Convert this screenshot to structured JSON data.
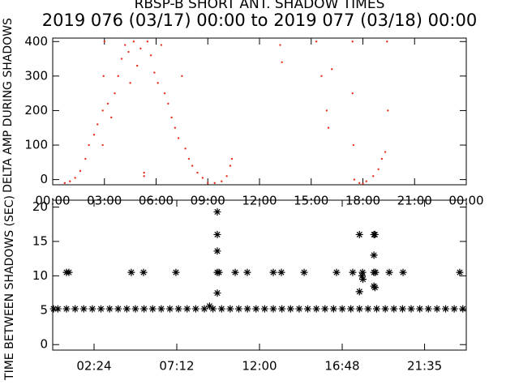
{
  "chart_data": [
    {
      "type": "scatter",
      "title": "RBSP-B SHORT ANT. SHADOW TIMES",
      "subtitle": "2019 076 (03/17) 00:00 to 2019 077 (03/18) 00:00",
      "ylabel": "DELTA AMP DURING SHADOWS",
      "xlim": [
        0,
        24
      ],
      "ylim": [
        -15,
        410
      ],
      "xticks": [
        {
          "value": 0,
          "label": "00:00"
        },
        {
          "value": 3,
          "label": "03:00"
        },
        {
          "value": 6,
          "label": "06:00"
        },
        {
          "value": 9,
          "label": "09:00"
        },
        {
          "value": 12,
          "label": "12:00"
        },
        {
          "value": 15,
          "label": "15:00"
        },
        {
          "value": 18,
          "label": "18:00"
        },
        {
          "value": 21,
          "label": "21:00"
        },
        {
          "value": 24,
          "label": "00:00"
        }
      ],
      "yticks": [
        0,
        100,
        200,
        300,
        400
      ],
      "marker": "dot",
      "series": [
        {
          "color": "#e8301c",
          "x": [
            0.7,
            1.0,
            1.3,
            1.6,
            1.9,
            2.1,
            2.4,
            2.6,
            2.9,
            2.95,
            3.0,
            2.9,
            3.2,
            3.4,
            3.6,
            3.8,
            4.0,
            4.2,
            4.4,
            4.5,
            4.7,
            4.9,
            5.1,
            5.3,
            5.3,
            5.5,
            5.7,
            5.9,
            6.1,
            6.3,
            6.5,
            6.7,
            6.9,
            7.1,
            7.3,
            7.5,
            7.7,
            7.9,
            8.1,
            8.4,
            8.7,
            9.0,
            9.4,
            9.8,
            10.1,
            10.3,
            10.4,
            13.2,
            13.3,
            15.3,
            15.6,
            15.9,
            16.0,
            16.2,
            17.4,
            17.4,
            17.45,
            17.5,
            17.8,
            18.0,
            18.2,
            18.6,
            18.9,
            19.1,
            19.3,
            19.4,
            19.45
          ],
          "values": [
            -10,
            -5,
            5,
            25,
            60,
            100,
            130,
            160,
            200,
            300,
            400,
            100,
            220,
            180,
            250,
            300,
            350,
            390,
            370,
            280,
            400,
            330,
            380,
            10,
            20,
            400,
            360,
            310,
            280,
            390,
            250,
            220,
            180,
            150,
            120,
            300,
            90,
            60,
            40,
            20,
            5,
            -10,
            -10,
            -5,
            10,
            40,
            60,
            390,
            340,
            400,
            300,
            200,
            150,
            320,
            400,
            250,
            100,
            0,
            -10,
            -12,
            -5,
            10,
            30,
            60,
            80,
            400,
            200
          ]
        }
      ]
    },
    {
      "type": "scatter",
      "ylabel": "TIME BETWEEN SHADOWS (SEC)",
      "xlim": [
        0,
        24
      ],
      "ylim": [
        -0.8,
        21
      ],
      "xticks": [
        {
          "value": 2.4,
          "label": "02:24"
        },
        {
          "value": 7.2,
          "label": "07:12"
        },
        {
          "value": 12,
          "label": "12:00"
        },
        {
          "value": 16.8,
          "label": "16:48"
        },
        {
          "value": 21.58,
          "label": "21:35"
        }
      ],
      "yticks": [
        0,
        5,
        10,
        15,
        20
      ],
      "marker": "star",
      "series": [
        {
          "color": "#000000",
          "x": [
            0.3,
            0.8,
            1.3,
            1.8,
            2.3,
            2.8,
            3.3,
            3.8,
            4.3,
            4.8,
            5.3,
            5.8,
            6.3,
            6.8,
            7.3,
            7.8,
            8.3,
            8.8,
            9.3,
            9.8,
            10.3,
            10.8,
            11.3,
            11.8,
            12.3,
            12.8,
            13.3,
            13.8,
            14.3,
            14.8,
            15.3,
            15.8,
            16.3,
            16.8,
            17.3,
            17.8,
            18.3,
            18.8,
            19.3,
            19.8,
            20.3,
            20.8,
            21.3,
            21.8,
            22.3,
            22.8,
            23.3,
            23.8,
            0.05,
            0.8,
            0.94,
            4.56,
            5.27,
            7.15,
            9.55,
            9.65,
            10.59,
            11.29,
            12.8,
            13.27,
            14.59,
            16.47,
            17.41,
            17.98,
            18.64,
            18.73,
            19.53,
            20.33,
            23.62,
            9.1,
            9.55,
            9.55,
            9.55,
            9.55,
            17.8,
            17.8,
            17.95,
            18.0,
            18.64,
            18.7,
            18.64,
            18.64,
            18.7
          ],
          "values": [
            5.2,
            5.2,
            5.2,
            5.2,
            5.2,
            5.2,
            5.2,
            5.2,
            5.2,
            5.2,
            5.2,
            5.2,
            5.2,
            5.2,
            5.2,
            5.2,
            5.2,
            5.2,
            5.2,
            5.2,
            5.2,
            5.2,
            5.2,
            5.2,
            5.2,
            5.2,
            5.2,
            5.2,
            5.2,
            5.2,
            5.2,
            5.2,
            5.2,
            5.2,
            5.2,
            5.2,
            5.2,
            5.2,
            5.2,
            5.2,
            5.2,
            5.2,
            5.2,
            5.2,
            5.2,
            5.2,
            5.2,
            5.2,
            5.2,
            10.5,
            10.5,
            10.5,
            10.5,
            10.5,
            10.5,
            10.5,
            10.5,
            10.5,
            10.5,
            10.5,
            10.5,
            10.5,
            10.5,
            10.5,
            10.5,
            10.5,
            10.5,
            10.5,
            10.5,
            5.6,
            19.3,
            16,
            13.6,
            7.5,
            16,
            7.7,
            10,
            9.5,
            16,
            16,
            13,
            8.5,
            8.3
          ]
        }
      ]
    }
  ]
}
